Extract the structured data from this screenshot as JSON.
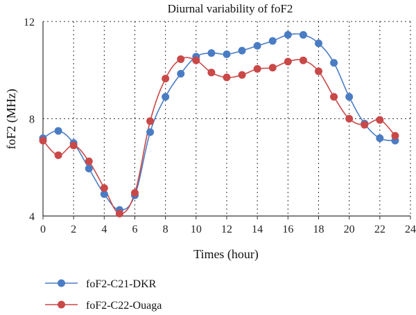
{
  "chart_data": {
    "type": "line",
    "title": "Diurnal variability of foF2",
    "xlabel": "Times (hour)",
    "ylabel": "foF2 (MHz)",
    "xlim": [
      0,
      24
    ],
    "ylim": [
      4,
      12
    ],
    "xticks": [
      "0",
      "2",
      "4",
      "6",
      "8",
      "10",
      "12",
      "14",
      "16",
      "18",
      "20",
      "22",
      "24"
    ],
    "yticks": [
      "4",
      "8",
      "12"
    ],
    "grid": "dotted",
    "legend_position": "bottom-left",
    "x": [
      0,
      1,
      2,
      3,
      4,
      5,
      6,
      7,
      8,
      9,
      10,
      11,
      12,
      13,
      14,
      15,
      16,
      17,
      18,
      19,
      20,
      21,
      22,
      23
    ],
    "series": [
      {
        "name": "foF2-C21-DKR",
        "color": "#4a7cc4",
        "values": [
          7.2,
          7.5,
          7.0,
          5.95,
          4.9,
          4.25,
          4.85,
          7.45,
          8.9,
          9.85,
          10.55,
          10.7,
          10.65,
          10.8,
          11.0,
          11.2,
          11.45,
          11.45,
          11.1,
          10.3,
          8.9,
          7.8,
          7.2,
          7.1
        ]
      },
      {
        "name": "foF2-C22-Ouaga",
        "color": "#c94848",
        "values": [
          7.1,
          6.5,
          6.9,
          6.25,
          5.15,
          4.1,
          4.95,
          7.9,
          9.65,
          10.45,
          10.4,
          9.9,
          9.7,
          9.8,
          10.05,
          10.1,
          10.35,
          10.4,
          9.95,
          8.9,
          8.0,
          7.75,
          7.95,
          7.3
        ]
      }
    ]
  }
}
